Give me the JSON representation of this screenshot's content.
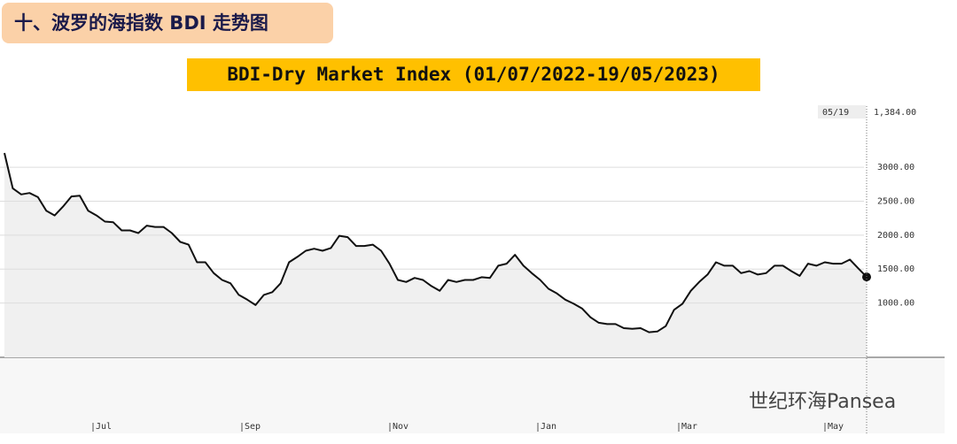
{
  "header": "十、波罗的海指数 BDI 走势图",
  "chart_data": {
    "type": "line",
    "title": "BDI-Dry Market Index (01/07/2022-19/05/2023)",
    "values": [
      3210,
      2690,
      2600,
      2620,
      2560,
      2360,
      2290,
      2420,
      2570,
      2580,
      2360,
      2290,
      2200,
      2190,
      2070,
      2070,
      2030,
      2140,
      2120,
      2120,
      2030,
      1900,
      1860,
      1600,
      1600,
      1440,
      1340,
      1290,
      1120,
      1050,
      970,
      1120,
      1160,
      1290,
      1600,
      1680,
      1770,
      1800,
      1770,
      1810,
      1990,
      1970,
      1840,
      1840,
      1860,
      1770,
      1580,
      1340,
      1310,
      1370,
      1340,
      1250,
      1180,
      1340,
      1310,
      1340,
      1340,
      1380,
      1370,
      1550,
      1580,
      1710,
      1550,
      1440,
      1340,
      1210,
      1140,
      1050,
      990,
      920,
      790,
      710,
      690,
      690,
      630,
      620,
      630,
      570,
      580,
      660,
      900,
      990,
      1180,
      1310,
      1420,
      1600,
      1550,
      1550,
      1440,
      1470,
      1420,
      1440,
      1550,
      1550,
      1470,
      1400,
      1580,
      1550,
      1600,
      1580,
      1580,
      1640,
      1510,
      1384
    ],
    "color": "#111111",
    "fill": "#f0f0f0",
    "ylim": [
      200,
      3900
    ],
    "yticks": [
      {
        "value": 1000,
        "label": "1000.00"
      },
      {
        "value": 1500,
        "label": "1500.00"
      },
      {
        "value": 2000,
        "label": "2000.00"
      },
      {
        "value": 2500,
        "label": "2500.00"
      },
      {
        "value": 3000,
        "label": "3000.00"
      }
    ],
    "grid": true,
    "x_labels": [
      "Jul",
      "Sep",
      "Nov",
      "Jan",
      "Mar",
      "May"
    ],
    "end_date": "05/19",
    "end_value_label": "1,384.00",
    "watermark": "世纪环海Pansea"
  }
}
